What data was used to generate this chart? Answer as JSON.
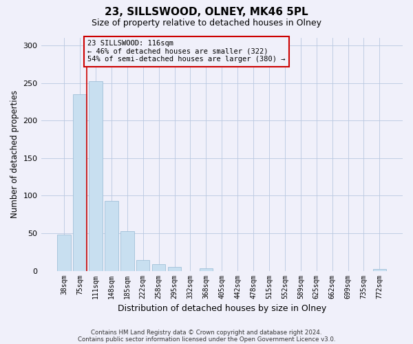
{
  "title": "23, SILLSWOOD, OLNEY, MK46 5PL",
  "subtitle": "Size of property relative to detached houses in Olney",
  "xlabel": "Distribution of detached houses by size in Olney",
  "ylabel": "Number of detached properties",
  "bar_labels": [
    "38sqm",
    "75sqm",
    "111sqm",
    "148sqm",
    "185sqm",
    "222sqm",
    "258sqm",
    "295sqm",
    "332sqm",
    "368sqm",
    "405sqm",
    "442sqm",
    "478sqm",
    "515sqm",
    "552sqm",
    "589sqm",
    "625sqm",
    "662sqm",
    "699sqm",
    "735sqm",
    "772sqm"
  ],
  "bar_values": [
    48,
    235,
    252,
    93,
    53,
    14,
    9,
    5,
    0,
    3,
    0,
    0,
    0,
    0,
    0,
    0,
    0,
    0,
    0,
    0,
    2
  ],
  "bar_color": "#c8dff0",
  "bar_edgecolor": "#a0c0d8",
  "vline_color": "#cc0000",
  "annotation_title": "23 SILLSWOOD: 116sqm",
  "annotation_line1": "← 46% of detached houses are smaller (322)",
  "annotation_line2": "54% of semi-detached houses are larger (380) →",
  "annotation_box_edgecolor": "#cc0000",
  "ylim": [
    0,
    310
  ],
  "yticks": [
    0,
    50,
    100,
    150,
    200,
    250,
    300
  ],
  "footer1": "Contains HM Land Registry data © Crown copyright and database right 2024.",
  "footer2": "Contains public sector information licensed under the Open Government Licence v3.0.",
  "background_color": "#f0f0fa",
  "figsize": [
    6.0,
    5.0
  ],
  "dpi": 100
}
